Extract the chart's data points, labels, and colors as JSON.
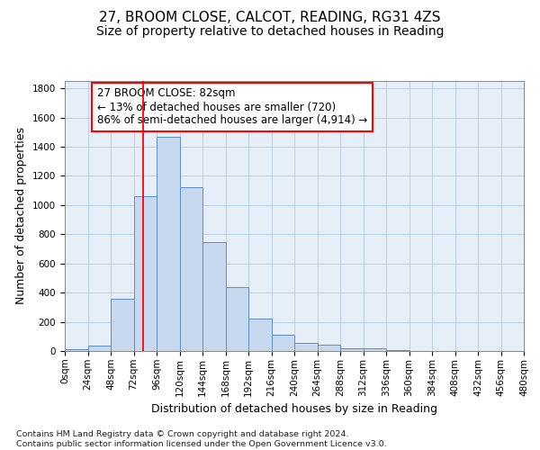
{
  "title": "27, BROOM CLOSE, CALCOT, READING, RG31 4ZS",
  "subtitle": "Size of property relative to detached houses in Reading",
  "xlabel": "Distribution of detached houses by size in Reading",
  "ylabel": "Number of detached properties",
  "bin_edges": [
    0,
    24,
    48,
    72,
    96,
    120,
    144,
    168,
    192,
    216,
    240,
    264,
    288,
    312,
    336,
    360,
    384,
    408,
    432,
    456,
    480
  ],
  "bar_values": [
    15,
    35,
    360,
    1060,
    1470,
    1120,
    745,
    435,
    225,
    110,
    55,
    45,
    20,
    18,
    5,
    3,
    2,
    1,
    0,
    0
  ],
  "bar_facecolor": "#c8d8ef",
  "bar_edgecolor": "#5a8ec8",
  "property_line_x": 82,
  "ylim": [
    0,
    1850
  ],
  "yticks": [
    0,
    200,
    400,
    600,
    800,
    1000,
    1200,
    1400,
    1600,
    1800
  ],
  "tick_labels": [
    "0sqm",
    "24sqm",
    "48sqm",
    "72sqm",
    "96sqm",
    "120sqm",
    "144sqm",
    "168sqm",
    "192sqm",
    "216sqm",
    "240sqm",
    "264sqm",
    "288sqm",
    "312sqm",
    "336sqm",
    "360sqm",
    "384sqm",
    "408sqm",
    "432sqm",
    "456sqm",
    "480sqm"
  ],
  "annotation_box_text": "27 BROOM CLOSE: 82sqm\n← 13% of detached houses are smaller (720)\n86% of semi-detached houses are larger (4,914) →",
  "footnote": "Contains HM Land Registry data © Crown copyright and database right 2024.\nContains public sector information licensed under the Open Government Licence v3.0.",
  "grid_color": "#adc4de",
  "background_color": "#e6eff8",
  "title_fontsize": 11,
  "subtitle_fontsize": 10,
  "axis_label_fontsize": 9,
  "tick_fontsize": 7.5,
  "annotation_fontsize": 8.5,
  "footnote_fontsize": 6.8
}
